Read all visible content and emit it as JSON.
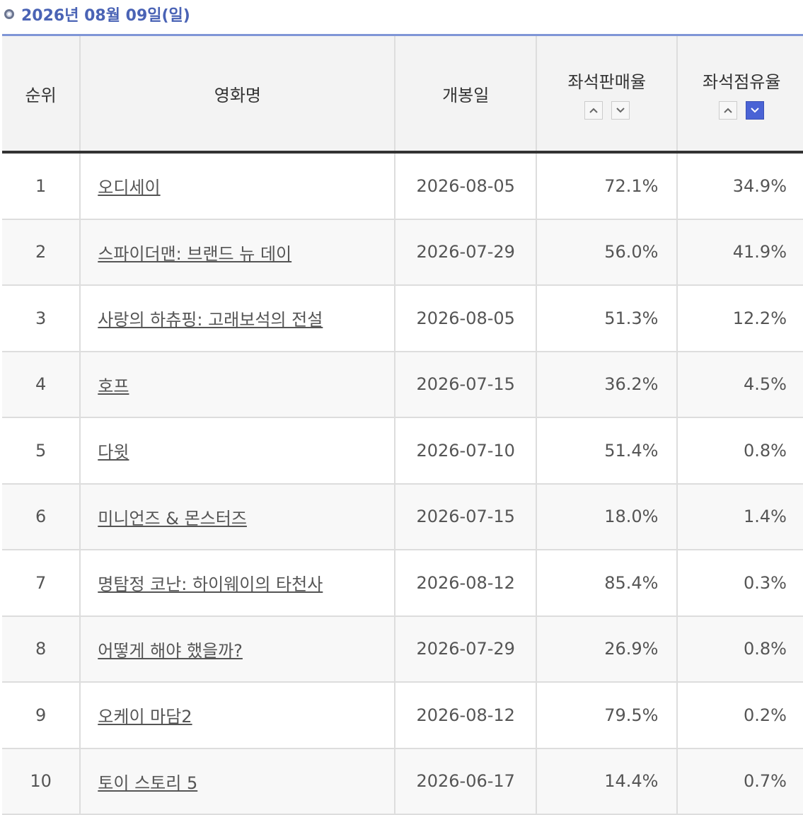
{
  "header": {
    "title": "2026년 08월 09일(일)"
  },
  "table": {
    "columns": [
      "순위",
      "영화명",
      "개봉일",
      "좌석판매율",
      "좌석점유율"
    ],
    "rows": [
      [
        "1",
        "오디세이",
        "2026-08-05",
        "72.1%",
        "34.9%"
      ],
      [
        "2",
        "스파이더맨: 브랜드 뉴 데이",
        "2026-07-29",
        "56.0%",
        "41.9%"
      ],
      [
        "3",
        "사랑의 하츄핑: 고래보석의 전설",
        "2026-08-05",
        "51.3%",
        "12.2%"
      ],
      [
        "4",
        "호프",
        "2026-07-15",
        "36.2%",
        "4.5%"
      ],
      [
        "5",
        "다윗",
        "2026-07-10",
        "51.4%",
        "0.8%"
      ],
      [
        "6",
        "미니언즈 & 몬스터즈",
        "2026-07-15",
        "18.0%",
        "1.4%"
      ],
      [
        "7",
        "명탐정 코난: 하이웨이의 타천사",
        "2026-08-12",
        "85.4%",
        "0.3%"
      ],
      [
        "8",
        "어떻게 해야 했을까?",
        "2026-07-29",
        "26.9%",
        "0.8%"
      ],
      [
        "9",
        "오케이 마담2",
        "2026-08-12",
        "79.5%",
        "0.2%"
      ],
      [
        "10",
        "토이 스토리 5",
        "2026-06-17",
        "14.4%",
        "0.7%"
      ]
    ]
  }
}
